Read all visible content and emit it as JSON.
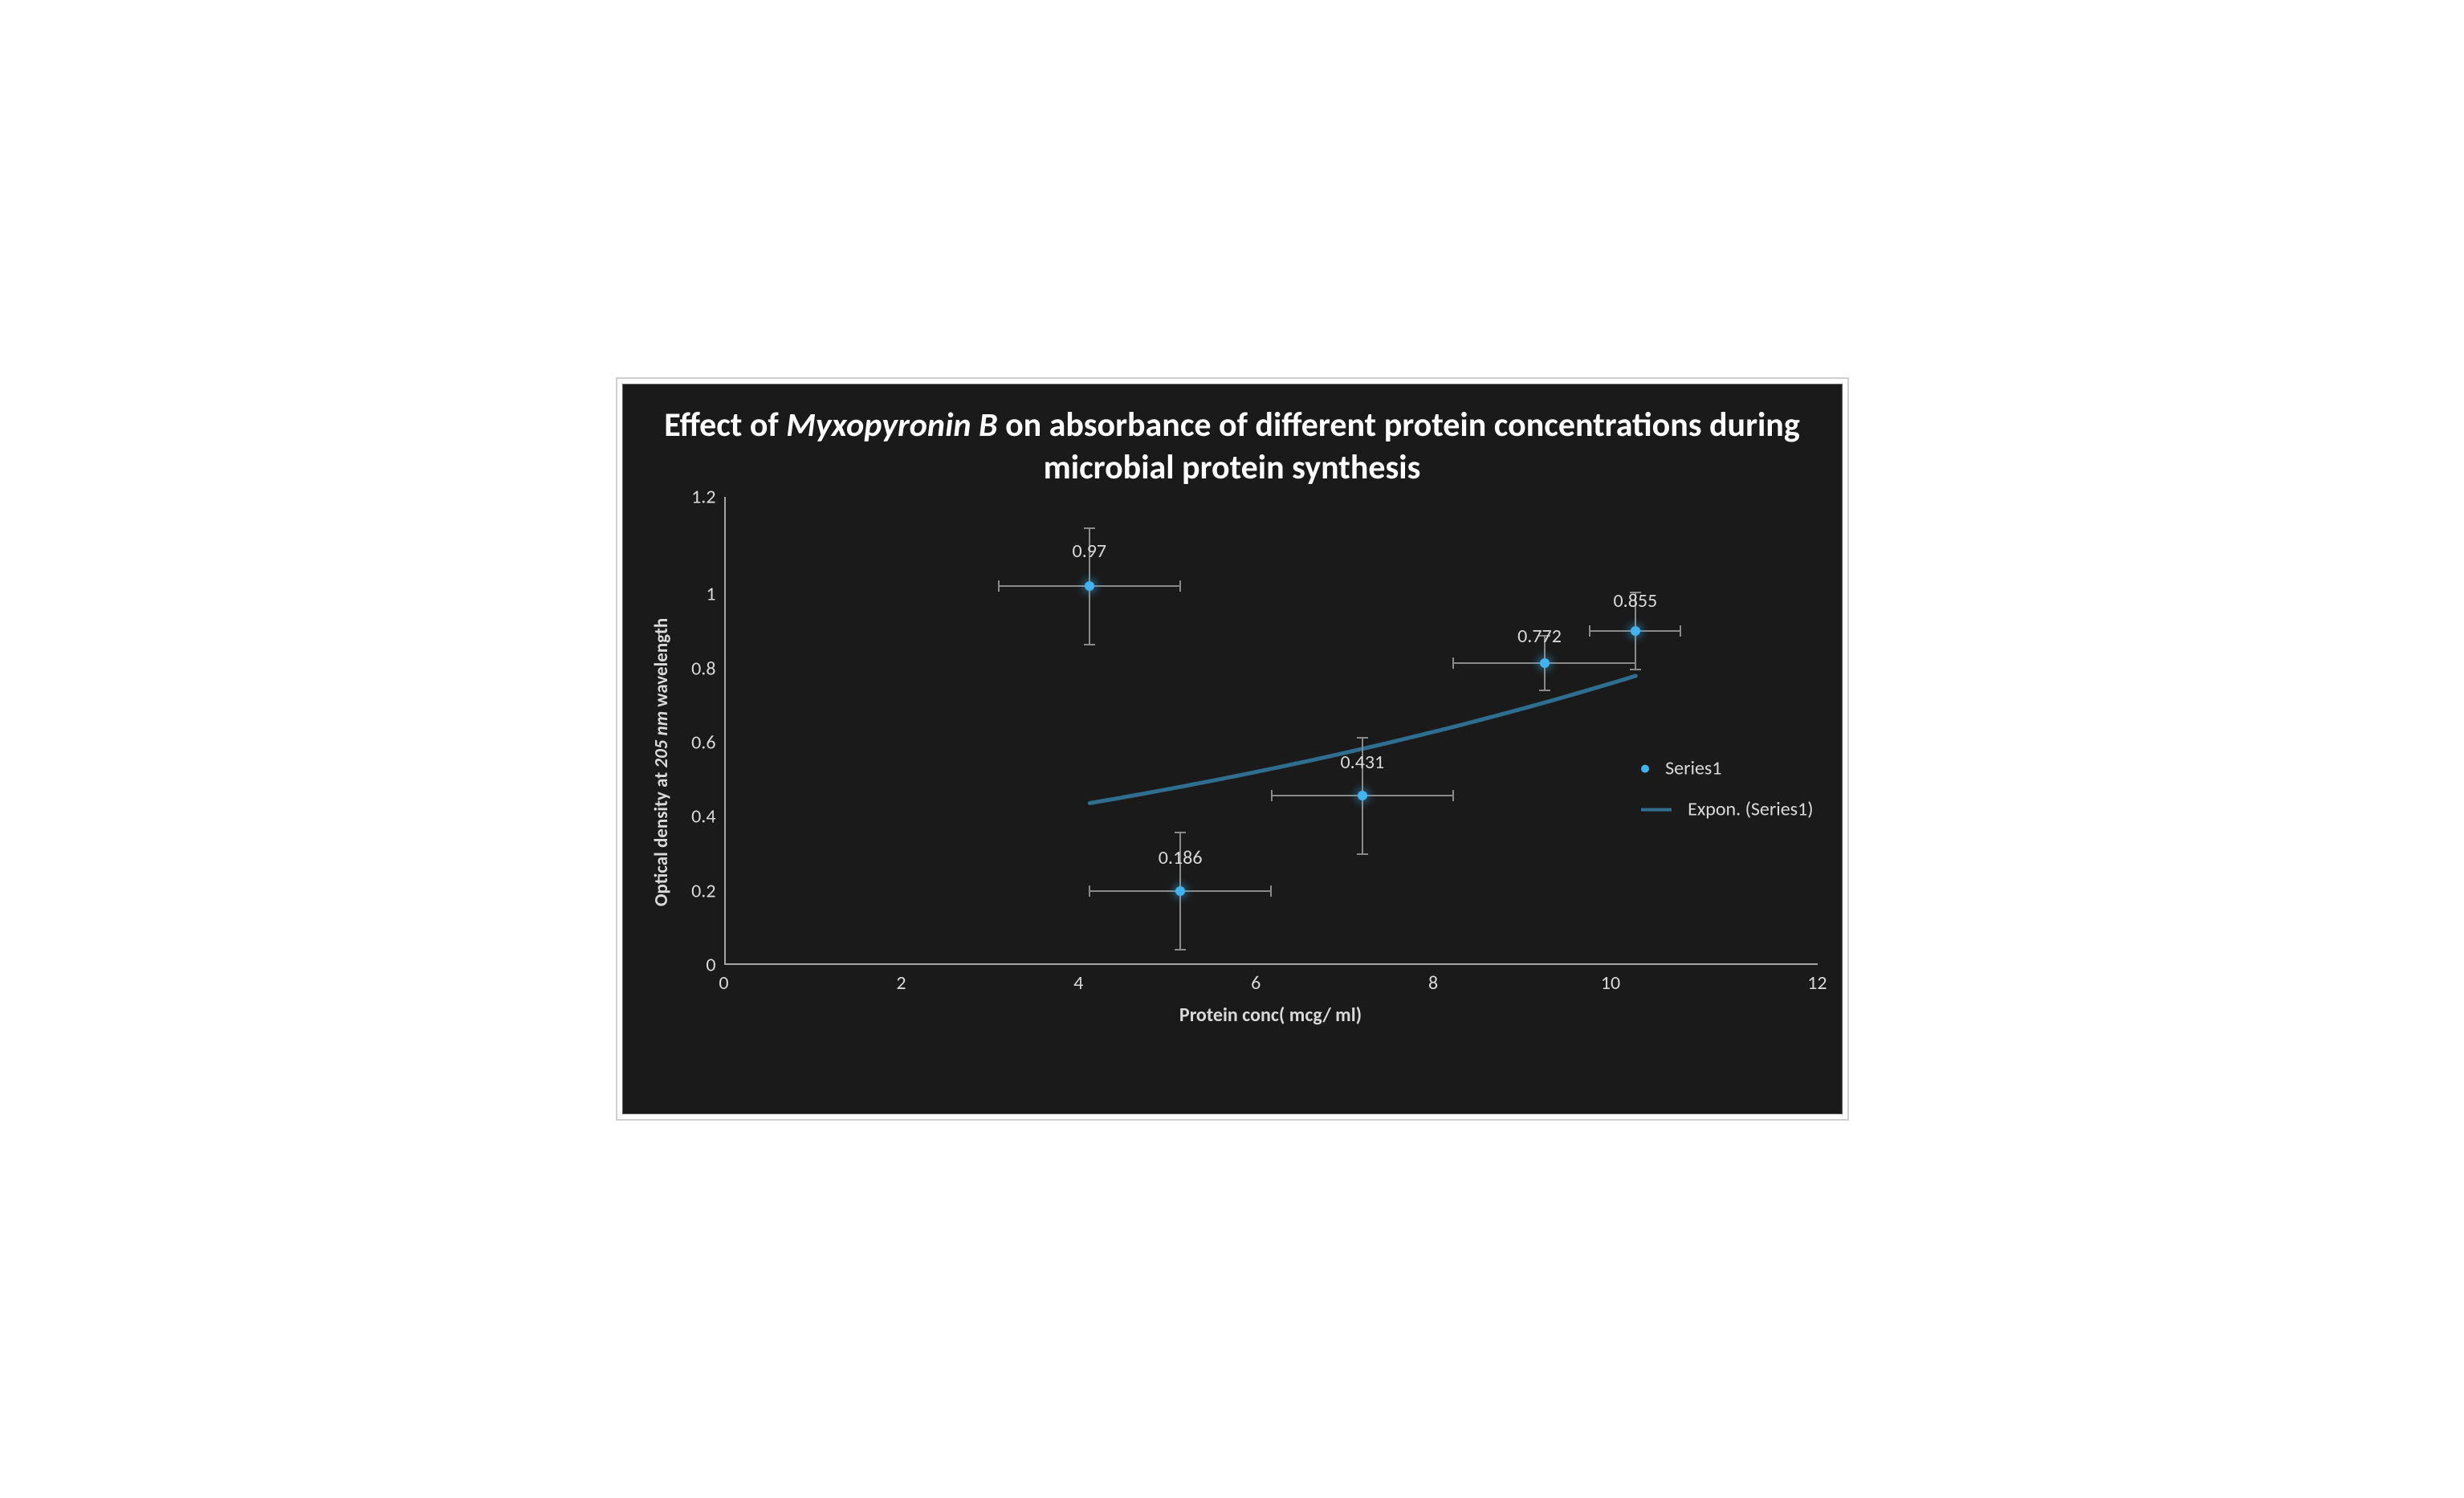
{
  "chart": {
    "type": "scatter",
    "title_html": "Effect of <span class='italic'>Myxopyronin B</span> on absorbance of different  protein concentrations during microbial protein synthesis",
    "title_fontsize": 42,
    "title_color": "#ffffff",
    "background_color": "#1a1a1a",
    "border_color": "#606060",
    "axis_color": "#a6a6a6",
    "tick_text_color": "#d9d9d9",
    "label_text_color": "#d9d9d9",
    "error_bar_color": "#8a8a8a",
    "x_axis": {
      "label": "Protein conc( mcg/ ml)",
      "min": 0,
      "max": 12,
      "step": 2,
      "ticks": [
        "0",
        "2",
        "4",
        "6",
        "8",
        "10",
        "12"
      ],
      "label_fontsize": 24,
      "tick_fontsize": 24
    },
    "y_axis": {
      "label_html": "Optical density at <span class='italic'>205 nm</span> wavelength",
      "min": 0,
      "max": 1.2,
      "step": 0.2,
      "ticks": [
        "1.2",
        "1",
        "0.8",
        "0.6",
        "0.4",
        "0.2",
        "0"
      ],
      "label_fontsize": 23,
      "tick_fontsize": 24
    },
    "series": {
      "name": "Series1",
      "marker_color": "#3fb4f0",
      "marker_glow": "rgba(64,180,240,0.45)",
      "marker_size": 12,
      "points": [
        {
          "x": 4,
          "y": 0.97,
          "label": "0.97",
          "xerr": 1.0,
          "yerr": 0.15,
          "label_dx": 0,
          "label_dy": -58
        },
        {
          "x": 5,
          "y": 0.186,
          "label": "0.186",
          "xerr": 1.0,
          "yerr": 0.15,
          "label_dx": 0,
          "label_dy": -56
        },
        {
          "x": 7,
          "y": 0.431,
          "label": "0.431",
          "xerr": 1.0,
          "yerr": 0.15,
          "label_dx": 0,
          "label_dy": -56
        },
        {
          "x": 9,
          "y": 0.772,
          "label": "0.772",
          "xerr": 1.0,
          "yerr": 0.07,
          "label_dx": -6,
          "label_dy": -48
        },
        {
          "x": 10,
          "y": 0.855,
          "label": "0.855",
          "xerr": 0.5,
          "yerr": 0.1,
          "label_dx": 0,
          "label_dy": -52
        }
      ],
      "data_label_fontsize": 24,
      "data_label_color": "#d9d9d9"
    },
    "trendline": {
      "name": "Expon. (Series1)",
      "color": "#2e6e8e",
      "width": 5,
      "x_start": 4,
      "x_end": 10,
      "coef_a": 0.279,
      "coef_b": 0.0975
    },
    "legend": {
      "items": [
        {
          "type": "dot",
          "label": "Series1",
          "color": "#3fb4f0"
        },
        {
          "type": "line",
          "label": "Expon. (Series1)",
          "color": "#2e6e8e"
        }
      ],
      "fontsize": 24,
      "text_color": "#d9d9d9"
    }
  }
}
